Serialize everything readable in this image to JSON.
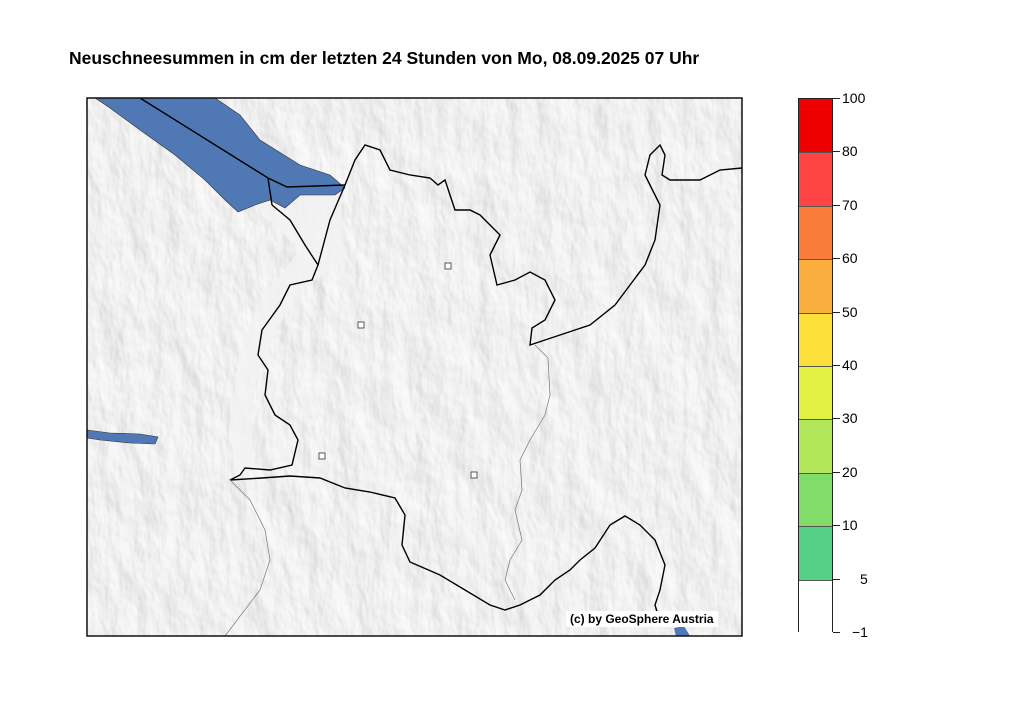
{
  "title": "Neuschneesummen in cm der letzten 24 Stunden von Mo, 08.09.2025 07 Uhr",
  "copyright": "(c) by GeoSphere Austria",
  "map": {
    "background": "hillshade-gray",
    "lake_color": "#4f78b4",
    "border_color": "#000000",
    "station_markers": 4
  },
  "colorbar": {
    "tick_labels": [
      "100",
      "80",
      "70",
      "60",
      "50",
      "40",
      "30",
      "20",
      "10",
      "5",
      "−1"
    ],
    "segments": [
      {
        "from": 80,
        "to": 100,
        "color": "#ee0000"
      },
      {
        "from": 70,
        "to": 80,
        "color": "#ff4444"
      },
      {
        "from": 60,
        "to": 70,
        "color": "#fb7b3c"
      },
      {
        "from": 50,
        "to": 60,
        "color": "#faae3d"
      },
      {
        "from": 40,
        "to": 50,
        "color": "#fbe03c"
      },
      {
        "from": 30,
        "to": 40,
        "color": "#e2f245"
      },
      {
        "from": 20,
        "to": 30,
        "color": "#b3e65a"
      },
      {
        "from": 10,
        "to": 20,
        "color": "#82dc6a"
      },
      {
        "from": 5,
        "to": 10,
        "color": "#55d185"
      },
      {
        "from": -1,
        "to": 5,
        "color": "#ffffff"
      }
    ]
  }
}
